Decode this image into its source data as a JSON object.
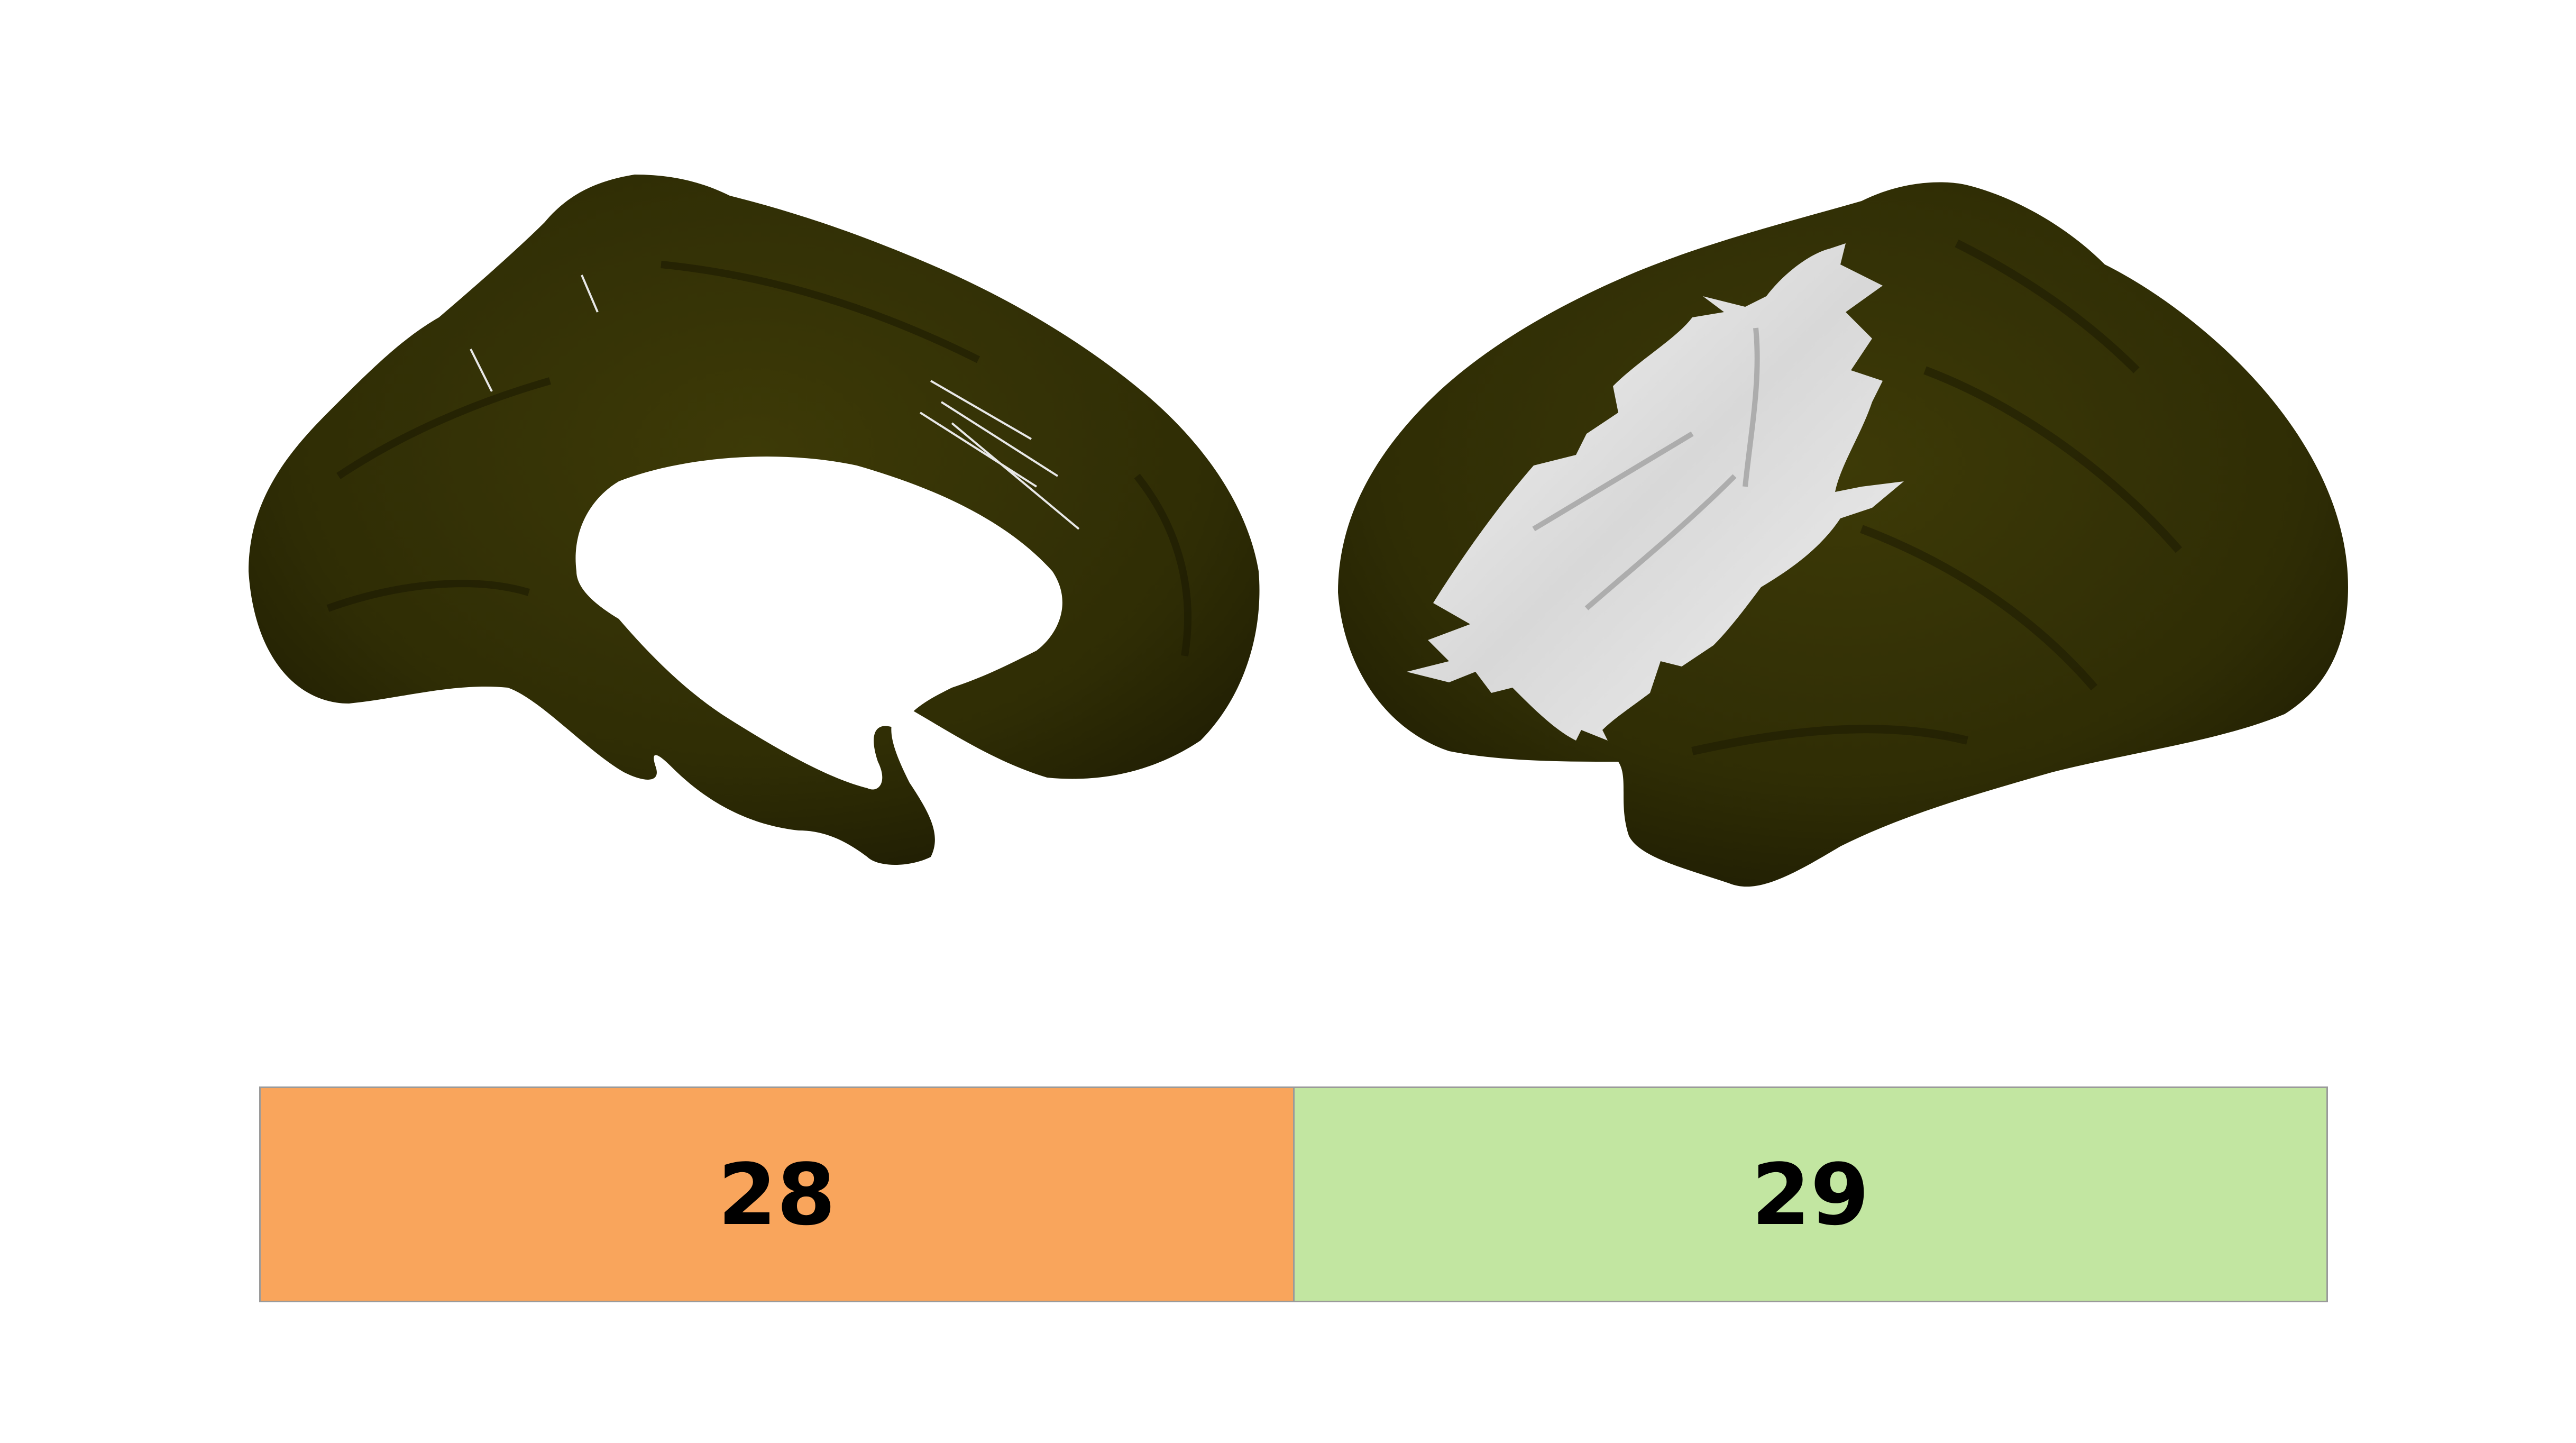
{
  "figure": {
    "views": [
      {
        "name": "medial-view",
        "surface_color": "#2f2d05",
        "highlight_color": "#e9e9e9"
      },
      {
        "name": "lateral-view",
        "surface_color": "#2f2d05",
        "highlight_color": "#e9e9e9"
      }
    ]
  },
  "labels": {
    "cells": [
      {
        "text": "28",
        "color": "#f9a55c"
      },
      {
        "text": "29",
        "color": "#c2e6a1"
      }
    ]
  }
}
